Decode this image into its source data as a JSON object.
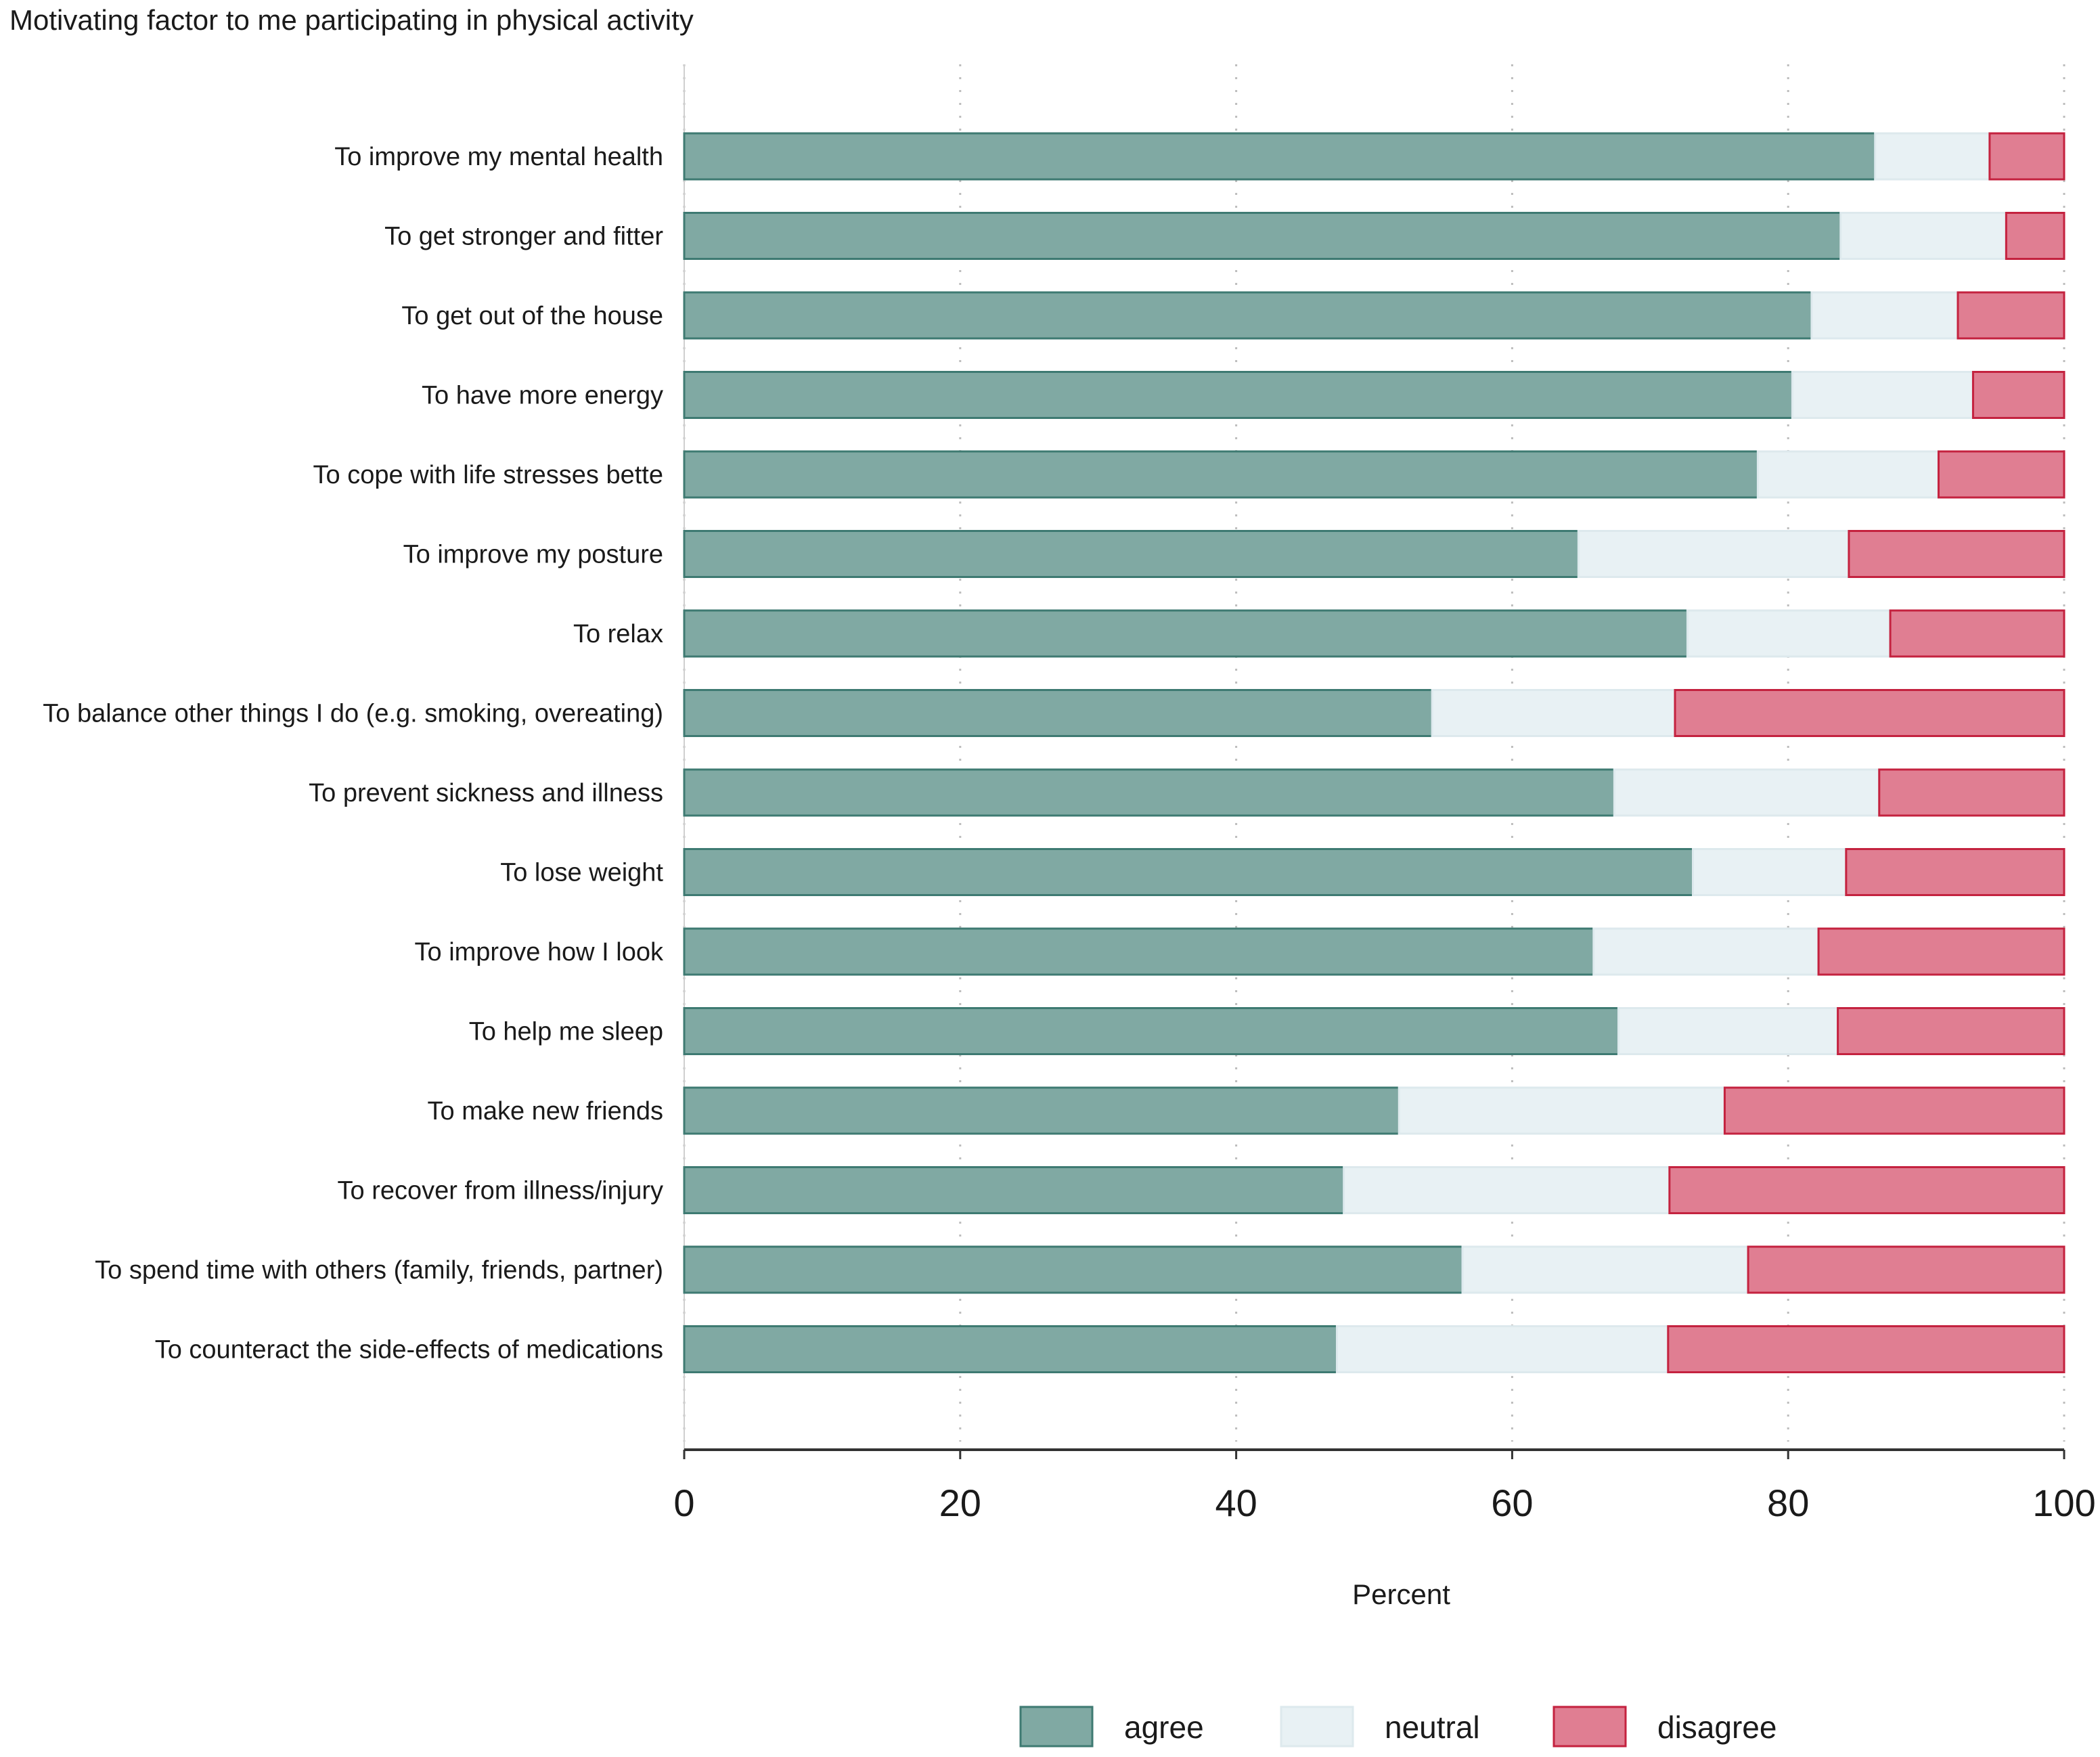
{
  "chart_data": {
    "type": "bar",
    "orientation": "horizontal",
    "stacked": true,
    "title": "Motivating factor to me participating in physical activity",
    "xlabel": "Percent",
    "ylabel": "",
    "xlim": [
      0,
      100
    ],
    "xticks": [
      "0",
      "20",
      "40",
      "60",
      "80",
      "100"
    ],
    "grid": "vertical dotted",
    "legend_position": "bottom",
    "categories": [
      "To improve my mental health",
      "To get stronger and fitter",
      "To get out of the house",
      "To have more energy",
      "To cope with life stresses bette",
      "To improve my posture",
      "To relax",
      "To balance other things I do (e.g. smoking, overeating)",
      "To prevent sickness and illness",
      "To lose weight",
      "To improve how I look",
      "To help me sleep",
      "To make new friends",
      "To recover from illness/injury",
      "To spend time with others (family, friends, partner)",
      "To counteract the side-effects of medications"
    ],
    "series": [
      {
        "name": "agree",
        "color": "#80a9a3",
        "stroke": "#3e7a72",
        "values": [
          86.3,
          83.8,
          81.7,
          80.3,
          77.8,
          64.8,
          72.7,
          54.2,
          67.4,
          73.1,
          65.9,
          67.7,
          51.8,
          47.8,
          56.4,
          47.3
        ]
      },
      {
        "name": "neutral",
        "color": "#e8f1f4",
        "stroke": "#dde9ed",
        "values": [
          8.3,
          12.0,
          10.6,
          13.1,
          13.1,
          19.6,
          14.7,
          17.6,
          19.2,
          11.1,
          16.3,
          15.9,
          23.6,
          23.6,
          20.7,
          24.0
        ]
      },
      {
        "name": "disagree",
        "color": "#e07e92",
        "stroke": "#c4223f",
        "values": [
          5.4,
          4.2,
          7.7,
          6.6,
          9.1,
          15.6,
          12.6,
          28.2,
          13.4,
          15.8,
          17.8,
          16.4,
          24.6,
          28.6,
          22.9,
          28.7
        ]
      }
    ]
  }
}
